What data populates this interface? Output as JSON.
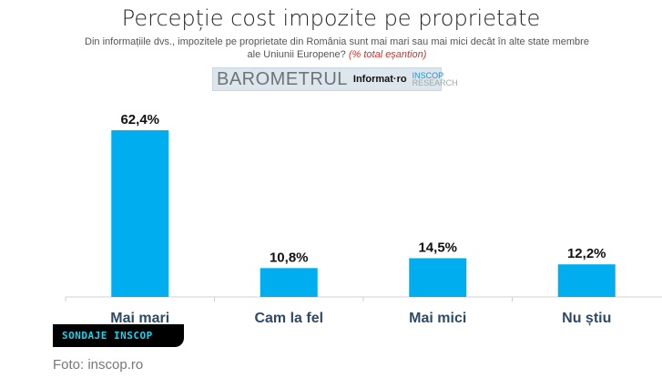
{
  "chart_data": {
    "type": "bar",
    "title": "Percepție cost impozite pe proprietate",
    "subtitle": "Din informațiile dvs., impozitele pe proprietate din România sunt mai mari sau mai mici decât în alte state membre ale Uniunii Europene?",
    "subtitle_note": "(% total eșantion)",
    "categories": [
      "Mai mari",
      "Cam la fel",
      "Mai mici",
      "Nu știu"
    ],
    "values": [
      62.4,
      10.8,
      14.5,
      12.2
    ],
    "data_labels": [
      "62,4%",
      "10,8%",
      "14,5%",
      "12,2%"
    ],
    "ylim": [
      0,
      70
    ],
    "grid": false,
    "bar_color": "#00aeef"
  },
  "logo": {
    "barometru": "BAROMETRUL",
    "informat": "Informat·ro",
    "inscop": "INSCOP",
    "research": "RESEARCH"
  },
  "badge": "SONDAJE INSCOP",
  "credit": "Foto: inscop.ro"
}
